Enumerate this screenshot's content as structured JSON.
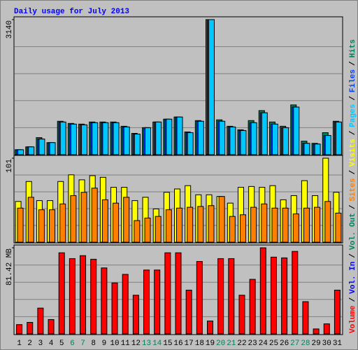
{
  "title": "Daily usage for July 2013",
  "legend_separator": "/",
  "chart_data": [
    {
      "type": "bar",
      "ylim": [
        0,
        3140
      ],
      "yticks": [
        3140
      ],
      "grid": true,
      "series": [
        {
          "name": "Hits",
          "color": "#00805c",
          "values": [
            116,
            182,
            397,
            281,
            777,
            727,
            711,
            760,
            760,
            760,
            661,
            496,
            628,
            760,
            826,
            876,
            529,
            793,
            3140,
            810,
            661,
            579,
            793,
            1025,
            760,
            661,
            1157,
            314,
            264,
            512,
            777
          ]
        },
        {
          "name": "Files",
          "color": "#0040ff",
          "values": [
            116,
            182,
            364,
            281,
            760,
            711,
            694,
            744,
            744,
            744,
            645,
            479,
            628,
            760,
            826,
            876,
            512,
            777,
            3140,
            777,
            645,
            562,
            744,
            975,
            711,
            628,
            1107,
            264,
            248,
            446,
            760
          ]
        },
        {
          "name": "Pages",
          "color": "#00c8ff",
          "values": [
            116,
            182,
            364,
            281,
            760,
            711,
            694,
            744,
            744,
            744,
            645,
            479,
            628,
            760,
            826,
            876,
            512,
            777,
            3140,
            777,
            645,
            562,
            744,
            975,
            711,
            628,
            1107,
            264,
            248,
            446,
            760
          ]
        }
      ]
    },
    {
      "type": "bar",
      "ylim": [
        0,
        101
      ],
      "yticks": [
        101
      ],
      "grid": true,
      "series": [
        {
          "name": "Visits",
          "color": "#ffff00",
          "values": [
            49,
            73,
            50,
            50,
            73,
            81,
            75,
            80,
            78,
            66,
            66,
            50,
            54,
            40,
            60,
            64,
            68,
            57,
            57,
            55,
            47,
            66,
            67,
            66,
            68,
            51,
            56,
            74,
            56,
            101,
            60
          ]
        },
        {
          "name": "Sites",
          "color": "#ff8000",
          "values": [
            41,
            54,
            39,
            39,
            46,
            56,
            60,
            65,
            51,
            47,
            54,
            26,
            29,
            31,
            39,
            41,
            42,
            43,
            44,
            55,
            31,
            33,
            42,
            46,
            41,
            41,
            34,
            41,
            42,
            49,
            35
          ]
        }
      ]
    },
    {
      "type": "bar",
      "ylim": [
        0,
        81.42
      ],
      "yticks": [
        {
          "value": 81.42,
          "label": "81.42 MB"
        }
      ],
      "grid": true,
      "categories": [
        "1",
        "2",
        "3",
        "4",
        "5",
        "6",
        "7",
        "8",
        "9",
        "10",
        "11",
        "12",
        "13",
        "14",
        "15",
        "16",
        "17",
        "18",
        "19",
        "20",
        "21",
        "22",
        "23",
        "24",
        "25",
        "26",
        "27",
        "28",
        "29",
        "30",
        "31"
      ],
      "weekend_color": "#00805c",
      "weekends": [
        5,
        6,
        12,
        13,
        19,
        20,
        26,
        27
      ],
      "series": [
        {
          "name": "Volume",
          "color": "#ff0000",
          "values": [
            8.8,
            10.9,
            24.4,
            13.6,
            76.7,
            71.2,
            74,
            70.6,
            62.4,
            48.2,
            56.3,
            36.6,
            60.4,
            60.4,
            76.7,
            76.7,
            41.4,
            68.5,
            12.2,
            71.2,
            71.2,
            36.6,
            51.6,
            81.42,
            72.6,
            71.9,
            78,
            30.5,
            4.7,
            9.5,
            41.4
          ]
        }
      ],
      "extra_legend": [
        {
          "name": "Vol. In",
          "color": "#0000ff"
        },
        {
          "name": "Vol. Out",
          "color": "#00805c"
        }
      ]
    }
  ]
}
